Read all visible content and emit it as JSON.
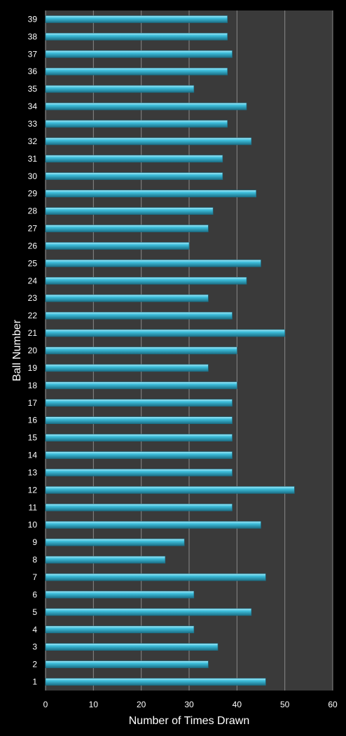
{
  "chart_data": {
    "type": "bar",
    "orientation": "horizontal",
    "xlabel": "Number of Times Drawn",
    "ylabel": "Ball Number",
    "xlim": [
      0,
      60
    ],
    "xticks": [
      0,
      10,
      20,
      30,
      40,
      50,
      60
    ],
    "grid": "vertical",
    "legend": "none",
    "categories": [
      "1",
      "2",
      "3",
      "4",
      "5",
      "6",
      "7",
      "8",
      "9",
      "10",
      "11",
      "12",
      "13",
      "14",
      "15",
      "16",
      "17",
      "18",
      "19",
      "20",
      "21",
      "22",
      "23",
      "24",
      "25",
      "26",
      "27",
      "28",
      "29",
      "30",
      "31",
      "32",
      "33",
      "34",
      "35",
      "36",
      "37",
      "38",
      "39"
    ],
    "values": [
      46,
      34,
      36,
      31,
      43,
      31,
      46,
      25,
      29,
      45,
      39,
      52,
      39,
      39,
      39,
      39,
      39,
      40,
      34,
      40,
      50,
      39,
      34,
      42,
      45,
      30,
      34,
      35,
      44,
      37,
      37,
      43,
      38,
      42,
      31,
      38,
      39,
      38,
      38
    ],
    "colors": {
      "background": "#000000",
      "plot_area": "#3a3a3a",
      "bar": "#3ebfdc",
      "bar_highlight": "#a9eaf8",
      "bar_shadow": "#1b6f86",
      "grid": "#8a8a8a",
      "text": "#ffffff"
    }
  }
}
